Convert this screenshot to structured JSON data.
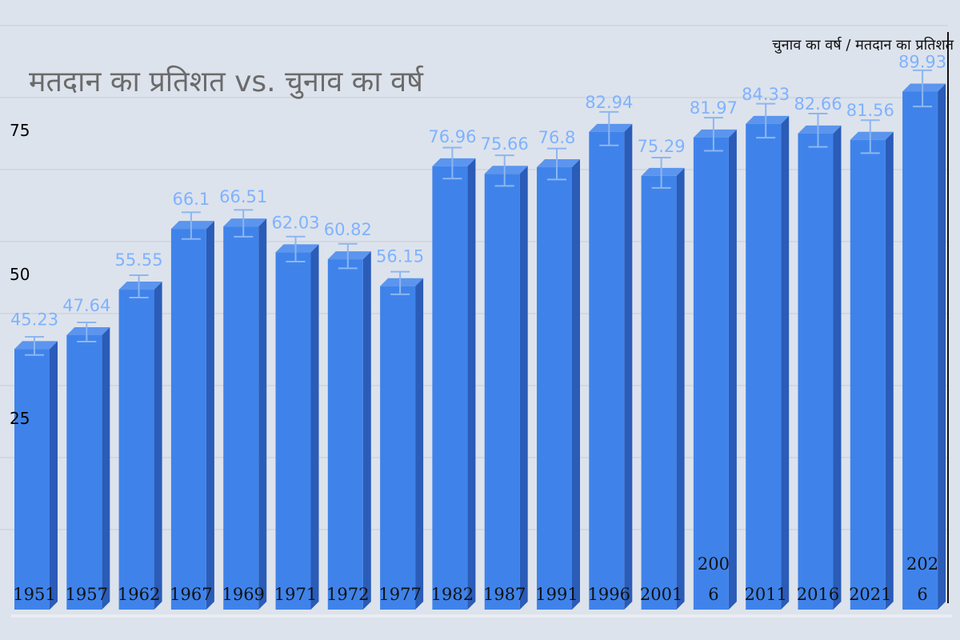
{
  "chart_data": {
    "type": "bar",
    "title": "मतदान का प्रतिशत vs. चुनाव का वर्ष",
    "legend": "चुनाव का वर्ष / मतदान का प्रतिशत",
    "legend_position": "top-right",
    "categories": [
      "1951",
      "1957",
      "1962",
      "1967",
      "1969",
      "1971",
      "1972",
      "1977",
      "1982",
      "1987",
      "1991",
      "1996",
      "2001",
      "2006",
      "2011",
      "2016",
      "2021",
      "2026"
    ],
    "category_display": [
      [
        "1951"
      ],
      [
        "1957"
      ],
      [
        "1962"
      ],
      [
        "1967"
      ],
      [
        "1969"
      ],
      [
        "1971"
      ],
      [
        "1972"
      ],
      [
        "1977"
      ],
      [
        "1982"
      ],
      [
        "1987"
      ],
      [
        "1991"
      ],
      [
        "1996"
      ],
      [
        "2001"
      ],
      [
        "200",
        "6"
      ],
      [
        "2011"
      ],
      [
        "2016"
      ],
      [
        "2021"
      ],
      [
        "202",
        "6"
      ]
    ],
    "values": [
      45.23,
      47.64,
      55.55,
      66.1,
      66.51,
      62.03,
      60.82,
      56.15,
      76.96,
      75.66,
      76.8,
      82.94,
      75.29,
      81.97,
      84.33,
      82.66,
      81.56,
      89.93
    ],
    "value_labels": [
      "45.23",
      "47.64",
      "55.55",
      "66.1",
      "66.51",
      "62.03",
      "60.82",
      "56.15",
      "76.96",
      "75.66",
      "76.8",
      "82.94",
      "75.29",
      "81.97",
      "84.33",
      "82.66",
      "81.56",
      "89.93"
    ],
    "error_bars": "±10%",
    "y_ticks": [
      "25",
      "50",
      "75"
    ],
    "ylim": [
      0,
      100
    ],
    "grid": true,
    "bar_color": "#3f83ea",
    "bar_side_color": "#2a5cb8",
    "bar_top_color": "#5b95ee",
    "error_bar_color": "#8db6f0",
    "data_label_color": "#7fb2ff"
  }
}
